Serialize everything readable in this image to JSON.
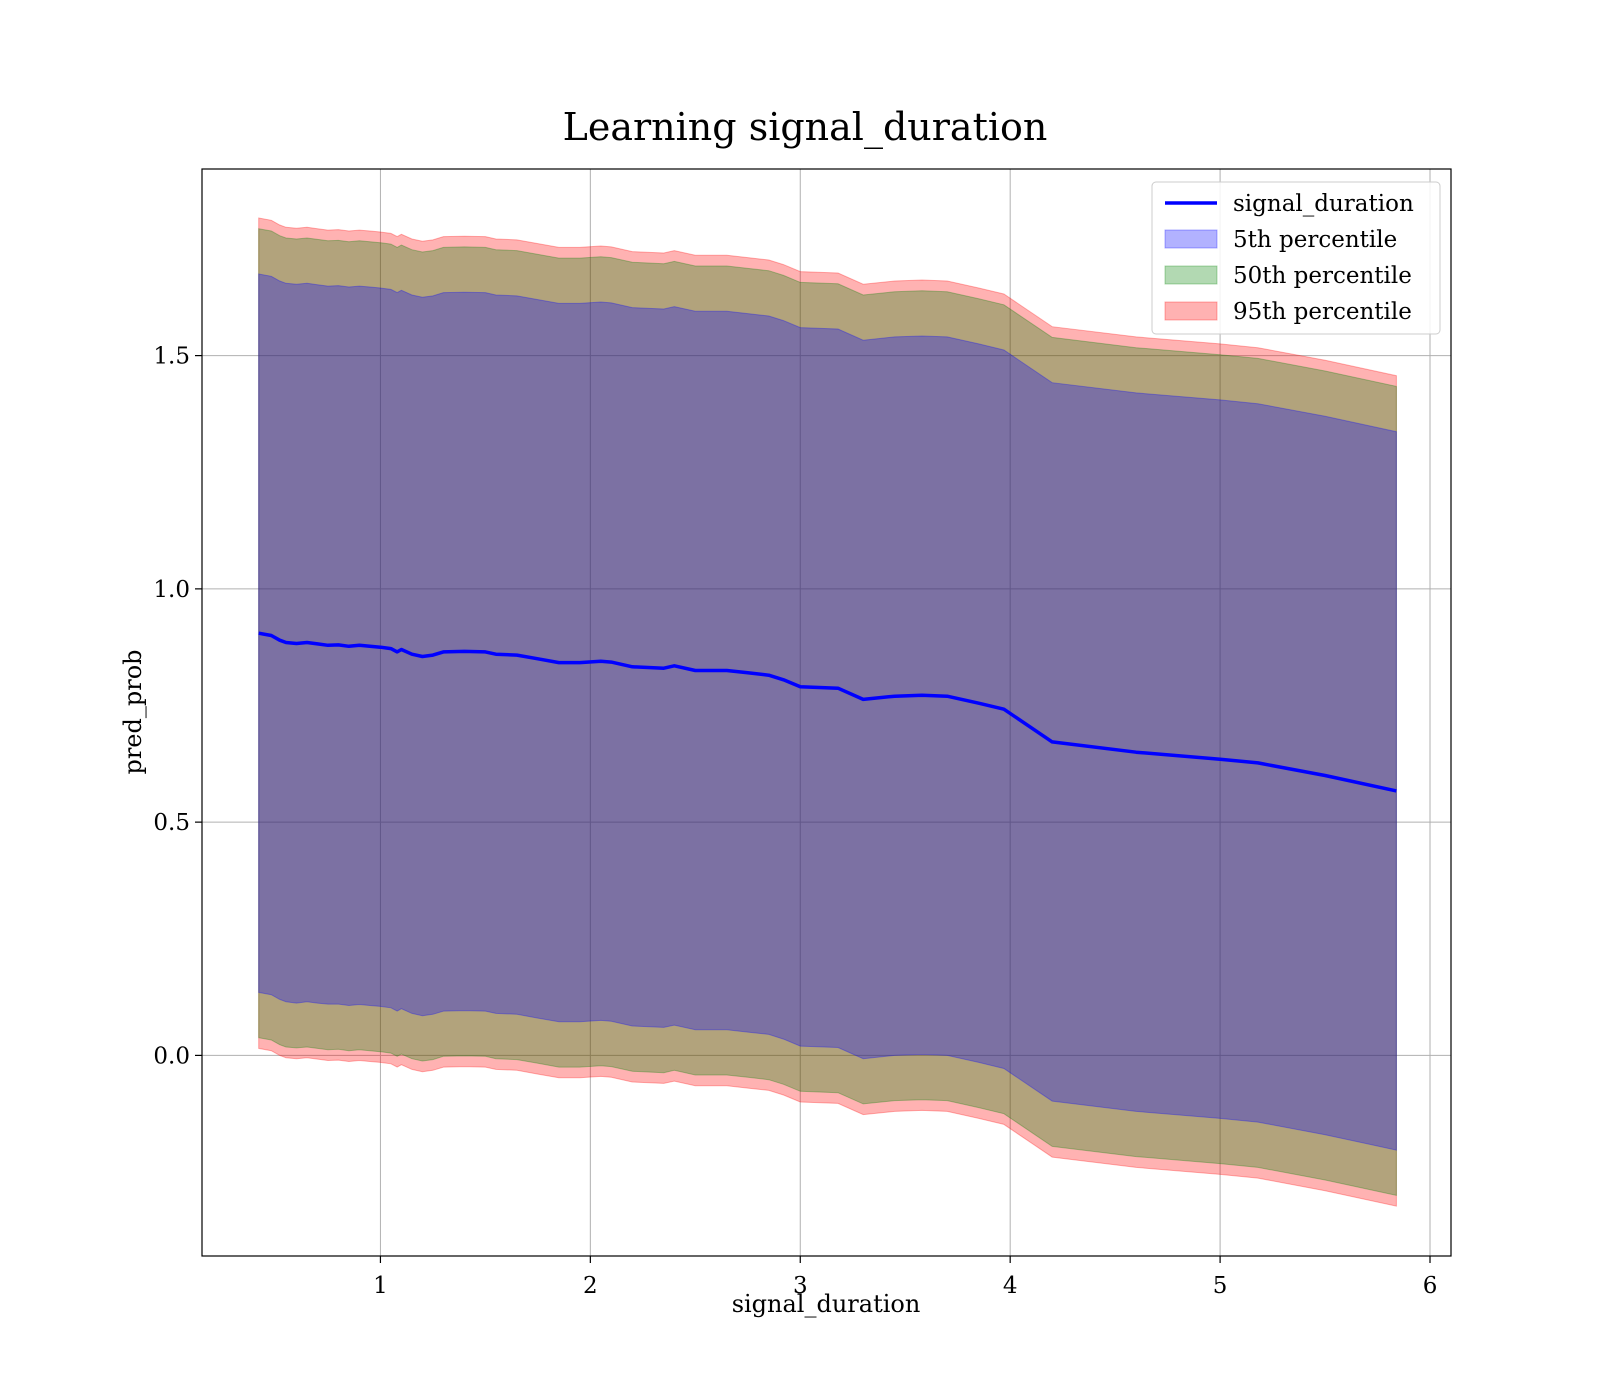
{
  "chart_data": {
    "type": "line",
    "title": "Learning signal_duration",
    "xlabel": "signal_duration",
    "ylabel": "pred_prob",
    "xlim": [
      0.15,
      6.1
    ],
    "ylim": [
      -0.43,
      1.9
    ],
    "xticks": [
      1,
      2,
      3,
      4,
      5,
      6
    ],
    "xtick_labels": [
      "1",
      "2",
      "3",
      "4",
      "5",
      "6"
    ],
    "yticks": [
      0.0,
      0.5,
      1.0,
      1.5
    ],
    "ytick_labels": [
      "0.0",
      "0.5",
      "1.0",
      "1.5"
    ],
    "grid": true,
    "legend_position": "top-right",
    "legend": [
      {
        "label": "signal_duration",
        "kind": "line",
        "color": "#0000ff"
      },
      {
        "label": "5th percentile",
        "kind": "patch",
        "color": "#0000ff"
      },
      {
        "label": "50th percentile",
        "kind": "patch",
        "color": "#008000"
      },
      {
        "label": "95th percentile",
        "kind": "patch",
        "color": "#ff0000"
      }
    ],
    "x": [
      0.42,
      0.48,
      0.52,
      0.55,
      0.6,
      0.65,
      0.7,
      0.75,
      0.8,
      0.85,
      0.9,
      0.95,
      1.0,
      1.05,
      1.08,
      1.1,
      1.15,
      1.2,
      1.25,
      1.3,
      1.4,
      1.5,
      1.55,
      1.65,
      1.75,
      1.85,
      1.95,
      2.05,
      2.1,
      2.2,
      2.35,
      2.4,
      2.5,
      2.65,
      2.75,
      2.85,
      2.92,
      3.0,
      3.18,
      3.3,
      3.45,
      3.58,
      3.7,
      3.85,
      3.97,
      4.2,
      4.6,
      5.0,
      5.18,
      5.5,
      5.84
    ],
    "series": [
      {
        "name": "signal_duration",
        "role": "line",
        "color": "#0000ff",
        "values": [
          0.905,
          0.9,
          0.89,
          0.885,
          0.883,
          0.885,
          0.882,
          0.879,
          0.88,
          0.877,
          0.879,
          0.877,
          0.875,
          0.872,
          0.865,
          0.87,
          0.86,
          0.855,
          0.858,
          0.865,
          0.866,
          0.865,
          0.86,
          0.858,
          0.85,
          0.842,
          0.842,
          0.845,
          0.843,
          0.833,
          0.83,
          0.835,
          0.825,
          0.825,
          0.82,
          0.815,
          0.805,
          0.79,
          0.787,
          0.763,
          0.77,
          0.772,
          0.77,
          0.755,
          0.742,
          0.672,
          0.65,
          0.635,
          0.627,
          0.6,
          0.567
        ]
      },
      {
        "name": "5th percentile",
        "role": "band",
        "color": "#0000ff",
        "opacity": 0.3,
        "lower": [
          0.135,
          0.13,
          0.12,
          0.115,
          0.112,
          0.115,
          0.112,
          0.11,
          0.11,
          0.107,
          0.109,
          0.107,
          0.105,
          0.102,
          0.095,
          0.1,
          0.09,
          0.085,
          0.088,
          0.095,
          0.096,
          0.095,
          0.09,
          0.088,
          0.08,
          0.072,
          0.072,
          0.075,
          0.073,
          0.063,
          0.06,
          0.065,
          0.055,
          0.055,
          0.05,
          0.045,
          0.035,
          0.02,
          0.017,
          -0.007,
          0.0,
          0.002,
          0.0,
          -0.015,
          -0.028,
          -0.098,
          -0.12,
          -0.135,
          -0.143,
          -0.17,
          -0.203
        ],
        "upper": [
          1.675,
          1.67,
          1.66,
          1.655,
          1.653,
          1.655,
          1.652,
          1.649,
          1.65,
          1.647,
          1.649,
          1.647,
          1.645,
          1.642,
          1.635,
          1.64,
          1.63,
          1.625,
          1.628,
          1.635,
          1.636,
          1.635,
          1.63,
          1.628,
          1.62,
          1.612,
          1.612,
          1.615,
          1.613,
          1.603,
          1.6,
          1.605,
          1.595,
          1.595,
          1.59,
          1.585,
          1.575,
          1.56,
          1.557,
          1.533,
          1.54,
          1.542,
          1.54,
          1.525,
          1.512,
          1.442,
          1.42,
          1.405,
          1.397,
          1.37,
          1.337
        ]
      },
      {
        "name": "50th percentile",
        "role": "band",
        "color": "#008000",
        "opacity": 0.3,
        "lower": [
          0.038,
          0.033,
          0.023,
          0.018,
          0.016,
          0.018,
          0.015,
          0.012,
          0.013,
          0.01,
          0.012,
          0.01,
          0.008,
          0.005,
          -0.002,
          0.003,
          -0.007,
          -0.012,
          -0.009,
          -0.002,
          -0.001,
          -0.002,
          -0.007,
          -0.009,
          -0.017,
          -0.025,
          -0.025,
          -0.022,
          -0.024,
          -0.034,
          -0.037,
          -0.032,
          -0.042,
          -0.042,
          -0.047,
          -0.052,
          -0.062,
          -0.077,
          -0.08,
          -0.104,
          -0.097,
          -0.095,
          -0.097,
          -0.112,
          -0.125,
          -0.195,
          -0.217,
          -0.232,
          -0.24,
          -0.267,
          -0.3
        ],
        "upper": [
          1.772,
          1.767,
          1.757,
          1.752,
          1.75,
          1.752,
          1.749,
          1.746,
          1.747,
          1.744,
          1.746,
          1.744,
          1.742,
          1.739,
          1.732,
          1.737,
          1.727,
          1.722,
          1.725,
          1.732,
          1.733,
          1.732,
          1.727,
          1.725,
          1.717,
          1.709,
          1.709,
          1.712,
          1.71,
          1.7,
          1.697,
          1.702,
          1.692,
          1.692,
          1.687,
          1.682,
          1.672,
          1.657,
          1.654,
          1.63,
          1.637,
          1.639,
          1.637,
          1.622,
          1.609,
          1.539,
          1.517,
          1.502,
          1.494,
          1.467,
          1.434
        ]
      },
      {
        "name": "95th percentile",
        "role": "band",
        "color": "#ff0000",
        "opacity": 0.3,
        "lower": [
          0.015,
          0.01,
          0.0,
          -0.005,
          -0.007,
          -0.005,
          -0.008,
          -0.011,
          -0.01,
          -0.013,
          -0.011,
          -0.013,
          -0.015,
          -0.018,
          -0.025,
          -0.02,
          -0.03,
          -0.035,
          -0.032,
          -0.025,
          -0.024,
          -0.025,
          -0.03,
          -0.032,
          -0.04,
          -0.048,
          -0.048,
          -0.045,
          -0.047,
          -0.057,
          -0.06,
          -0.055,
          -0.065,
          -0.065,
          -0.07,
          -0.075,
          -0.085,
          -0.1,
          -0.103,
          -0.127,
          -0.12,
          -0.118,
          -0.12,
          -0.135,
          -0.148,
          -0.218,
          -0.24,
          -0.255,
          -0.263,
          -0.29,
          -0.323
        ],
        "upper": [
          1.795,
          1.79,
          1.78,
          1.775,
          1.773,
          1.775,
          1.772,
          1.769,
          1.77,
          1.767,
          1.769,
          1.767,
          1.765,
          1.762,
          1.755,
          1.76,
          1.75,
          1.745,
          1.748,
          1.755,
          1.756,
          1.755,
          1.75,
          1.748,
          1.74,
          1.732,
          1.732,
          1.735,
          1.733,
          1.723,
          1.72,
          1.725,
          1.715,
          1.715,
          1.71,
          1.705,
          1.695,
          1.68,
          1.677,
          1.653,
          1.66,
          1.662,
          1.66,
          1.645,
          1.632,
          1.562,
          1.54,
          1.525,
          1.517,
          1.49,
          1.457
        ]
      }
    ]
  }
}
